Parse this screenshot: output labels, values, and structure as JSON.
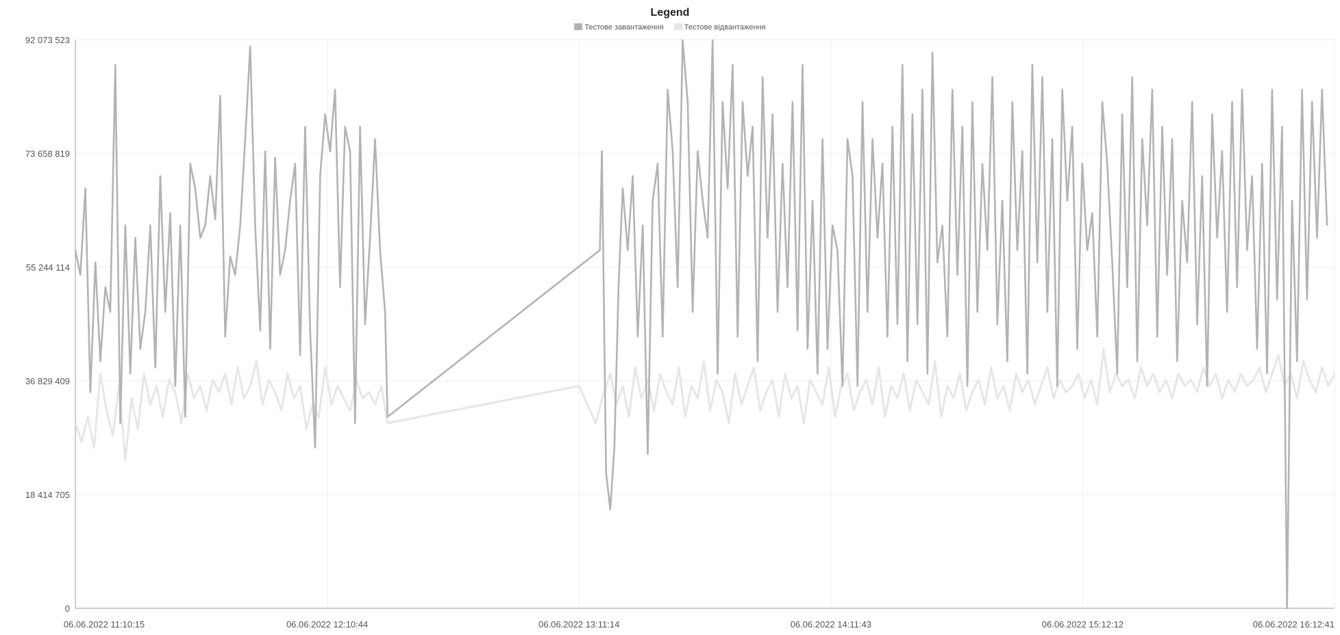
{
  "legend": {
    "title": "Legend",
    "items": [
      {
        "label": "Тестове завантаження",
        "color": "#b3b3b3"
      },
      {
        "label": "Тестове відвантаження",
        "color": "#e6e6e6"
      }
    ]
  },
  "chart_data": {
    "type": "line",
    "title": "Legend",
    "legend_position": "top-center",
    "grid": true,
    "ylim": [
      0,
      92073523
    ],
    "y_ticks": [
      "0",
      "18 414 705",
      "36 829 409",
      "55 244 114",
      "73 658 819",
      "92 073 523"
    ],
    "y_tick_values": [
      0,
      18414705,
      36829409,
      55244114,
      73658819,
      92073523
    ],
    "xlim": [
      "06.06.2022 11:10:15",
      "06.06.2022 16:12:41"
    ],
    "x_ticks": [
      "06.06.2022 11:10:15",
      "06.06.2022 12:10:44",
      "06.06.2022 13:11:14",
      "06.06.2022 14:11:43",
      "06.06.2022 15:12:12",
      "06.06.2022 16:12:41"
    ],
    "x_tick_values_min": [
      0,
      60.5,
      121,
      181.5,
      242,
      302.5
    ],
    "series": [
      {
        "name": "Тестове завантаження",
        "color": "#b3b3b3",
        "x_min": [
          0,
          1.2,
          2.4,
          3.6,
          4.8,
          6,
          7.2,
          8.4,
          9.6,
          10.8,
          12,
          13.2,
          14.4,
          15.6,
          16.8,
          18,
          19.2,
          20.4,
          21.6,
          22.8,
          24,
          25.2,
          26.4,
          27.6,
          28.8,
          30,
          31.2,
          32.4,
          33.6,
          34.8,
          36,
          37.2,
          38.4,
          39.6,
          40.8,
          42,
          43.2,
          44.4,
          45.6,
          46.8,
          48,
          49.2,
          50.4,
          51.6,
          52.8,
          54,
          55.2,
          56.4,
          57.6,
          58.8,
          60,
          61.2,
          62.4,
          63.6,
          64.8,
          66,
          67.2,
          68.4,
          69.6,
          70.8,
          72,
          73.2,
          74.4,
          75,
          126,
          126.5,
          127.5,
          128.5,
          129.5,
          130.5,
          131.5,
          132.7,
          133.9,
          135.1,
          136.3,
          137.5,
          138.7,
          139.9,
          141.1,
          142.3,
          143.5,
          144.7,
          145.9,
          147.1,
          148.3,
          149.5,
          150.7,
          151.9,
          153.1,
          154.3,
          155.5,
          156.7,
          157.9,
          159.1,
          160.3,
          161.5,
          162.7,
          163.9,
          165.1,
          166.3,
          167.5,
          168.7,
          169.9,
          171.1,
          172.3,
          173.5,
          174.7,
          175.9,
          177.1,
          178.3,
          179.5,
          180.7,
          181.9,
          183.1,
          184.3,
          185.5,
          186.7,
          187.9,
          189.1,
          190.3,
          191.5,
          192.7,
          193.9,
          195.1,
          196.3,
          197.5,
          198.7,
          199.9,
          201.1,
          202.3,
          203.5,
          204.7,
          205.9,
          207.1,
          208.3,
          209.5,
          210.7,
          211.9,
          213.1,
          214.3,
          215.5,
          216.7,
          217.9,
          219.1,
          220.3,
          221.5,
          222.7,
          223.9,
          225.1,
          226.3,
          227.5,
          228.7,
          229.9,
          231.1,
          232.3,
          233.5,
          234.7,
          235.9,
          237.1,
          238.3,
          239.5,
          240.7,
          241.9,
          243.1,
          244.3,
          245.5,
          246.7,
          247.9,
          249.1,
          250.3,
          251.5,
          252.7,
          253.9,
          255.1,
          256.3,
          257.5,
          258.7,
          259.9,
          261.1,
          262.3,
          263.5,
          264.7,
          265.9,
          267.1,
          268.3,
          269.5,
          270.7,
          271.9,
          273.1,
          274.3,
          275.5,
          276.7,
          277.9,
          279.1,
          280.3,
          281.5,
          282.7,
          283.9,
          285.1,
          286.3,
          287.5,
          288.7,
          289.9,
          291.1,
          292.3,
          293.5,
          294.7,
          295.9,
          297.1,
          298.3,
          299.5,
          300.7,
          301.9,
          302.5
        ],
        "values": [
          58000000,
          54000000,
          68000000,
          35000000,
          56000000,
          40000000,
          52000000,
          48000000,
          88000000,
          30000000,
          62000000,
          38000000,
          60000000,
          42000000,
          48000000,
          62000000,
          39000000,
          70000000,
          48000000,
          64000000,
          36000000,
          62000000,
          31000000,
          72000000,
          68000000,
          60000000,
          62000000,
          70000000,
          63000000,
          83000000,
          44000000,
          57000000,
          54000000,
          62000000,
          76000000,
          91000000,
          62000000,
          45000000,
          74000000,
          42000000,
          73000000,
          54000000,
          58000000,
          66000000,
          72000000,
          41000000,
          78000000,
          45000000,
          26000000,
          70000000,
          80000000,
          74000000,
          84000000,
          52000000,
          78000000,
          74000000,
          30000000,
          78000000,
          46000000,
          60000000,
          76000000,
          58000000,
          48000000,
          31000000,
          58000000,
          74000000,
          22000000,
          16000000,
          26000000,
          52000000,
          68000000,
          58000000,
          70000000,
          44000000,
          62000000,
          25000000,
          66000000,
          72000000,
          44000000,
          84000000,
          74000000,
          52000000,
          92000000,
          82000000,
          48000000,
          74000000,
          66000000,
          60000000,
          92000000,
          38000000,
          82000000,
          68000000,
          88000000,
          44000000,
          82000000,
          70000000,
          78000000,
          40000000,
          86000000,
          60000000,
          80000000,
          48000000,
          72000000,
          52000000,
          82000000,
          45000000,
          88000000,
          42000000,
          66000000,
          38000000,
          76000000,
          42000000,
          62000000,
          58000000,
          36000000,
          76000000,
          70000000,
          36000000,
          82000000,
          48000000,
          76000000,
          60000000,
          72000000,
          44000000,
          78000000,
          46000000,
          88000000,
          40000000,
          80000000,
          46000000,
          84000000,
          38000000,
          90000000,
          56000000,
          62000000,
          44000000,
          84000000,
          54000000,
          78000000,
          36000000,
          82000000,
          48000000,
          72000000,
          58000000,
          86000000,
          46000000,
          66000000,
          40000000,
          82000000,
          58000000,
          74000000,
          38000000,
          88000000,
          56000000,
          86000000,
          48000000,
          76000000,
          36000000,
          84000000,
          66000000,
          78000000,
          42000000,
          72000000,
          58000000,
          64000000,
          44000000,
          82000000,
          72000000,
          56000000,
          38000000,
          80000000,
          52000000,
          86000000,
          40000000,
          76000000,
          62000000,
          84000000,
          44000000,
          78000000,
          54000000,
          76000000,
          40000000,
          66000000,
          56000000,
          82000000,
          46000000,
          70000000,
          36000000,
          80000000,
          60000000,
          74000000,
          48000000,
          82000000,
          52000000,
          84000000,
          58000000,
          70000000,
          42000000,
          72000000,
          38000000,
          84000000,
          50000000,
          78000000,
          0,
          66000000,
          40000000,
          84000000,
          50000000,
          82000000,
          60000000,
          84000000,
          62000000
        ]
      },
      {
        "name": "Тестове відвантаження",
        "color": "#e6e6e6",
        "x_min": [
          0,
          1.5,
          3,
          4.5,
          6,
          7.5,
          9,
          10.5,
          12,
          13.5,
          15,
          16.5,
          18,
          19.5,
          21,
          22.5,
          24,
          25.5,
          27,
          28.5,
          30,
          31.5,
          33,
          34.5,
          36,
          37.5,
          39,
          40.5,
          42,
          43.5,
          45,
          46.5,
          48,
          49.5,
          51,
          52.5,
          54,
          55.5,
          57,
          58.5,
          60,
          61.5,
          63,
          64.5,
          66,
          67.5,
          69,
          70.5,
          72,
          73.5,
          75,
          121,
          123,
          125,
          127,
          128.5,
          130,
          131.5,
          133,
          134.5,
          136,
          137.5,
          139,
          140.5,
          142,
          143.5,
          145,
          146.5,
          148,
          149.5,
          151,
          152.5,
          154,
          155.5,
          157,
          158.5,
          160,
          161.5,
          163,
          164.5,
          166,
          167.5,
          169,
          170.5,
          172,
          173.5,
          175,
          176.5,
          178,
          179.5,
          181,
          182.5,
          184,
          185.5,
          187,
          188.5,
          190,
          191.5,
          193,
          194.5,
          196,
          197.5,
          199,
          200.5,
          202,
          203.5,
          205,
          206.5,
          208,
          209.5,
          211,
          212.5,
          214,
          215.5,
          217,
          218.5,
          220,
          221.5,
          223,
          224.5,
          226,
          227.5,
          229,
          230.5,
          232,
          233.5,
          235,
          236.5,
          238,
          239.5,
          241,
          242.5,
          244,
          245.5,
          247,
          248.5,
          250,
          251.5,
          253,
          254.5,
          256,
          257.5,
          259,
          260.5,
          262,
          263.5,
          265,
          266.5,
          268,
          269.5,
          271,
          272.5,
          274,
          275.5,
          277,
          278.5,
          280,
          281.5,
          283,
          284.5,
          286,
          287.5,
          289,
          290.5,
          292,
          293.5,
          295,
          296.5,
          298,
          299.5,
          301,
          302.5
        ],
        "values": [
          30000000,
          27000000,
          31000000,
          26000000,
          38000000,
          32000000,
          28000000,
          36000000,
          24000000,
          34000000,
          29000000,
          38000000,
          33000000,
          36000000,
          31000000,
          37000000,
          35000000,
          30000000,
          38000000,
          34000000,
          36000000,
          32000000,
          37000000,
          35000000,
          38000000,
          33000000,
          39000000,
          34000000,
          36000000,
          40000000,
          33000000,
          37000000,
          35000000,
          32000000,
          38000000,
          34000000,
          36000000,
          29000000,
          33000000,
          31000000,
          39000000,
          33000000,
          36000000,
          34000000,
          32000000,
          37000000,
          34000000,
          35000000,
          33000000,
          36000000,
          30000000,
          36000000,
          33000000,
          30000000,
          35000000,
          38000000,
          33000000,
          36000000,
          31000000,
          39000000,
          34000000,
          37000000,
          32000000,
          38000000,
          35000000,
          33000000,
          39000000,
          31000000,
          36000000,
          34000000,
          40000000,
          32000000,
          37000000,
          35000000,
          30000000,
          38000000,
          33000000,
          36000000,
          39000000,
          32000000,
          35000000,
          37000000,
          31000000,
          38000000,
          34000000,
          36000000,
          30000000,
          37000000,
          35000000,
          33000000,
          39000000,
          31000000,
          36000000,
          38000000,
          32000000,
          35000000,
          37000000,
          33000000,
          39000000,
          31000000,
          36000000,
          34000000,
          38000000,
          32000000,
          37000000,
          35000000,
          33000000,
          40000000,
          31000000,
          36000000,
          34000000,
          38000000,
          32000000,
          35000000,
          37000000,
          33000000,
          39000000,
          34000000,
          36000000,
          32000000,
          38000000,
          35000000,
          37000000,
          33000000,
          36000000,
          39000000,
          34000000,
          37000000,
          35000000,
          36000000,
          38000000,
          34000000,
          37000000,
          33000000,
          42000000,
          35000000,
          38000000,
          36000000,
          37000000,
          34000000,
          39000000,
          36000000,
          38000000,
          35000000,
          37000000,
          34000000,
          38000000,
          36000000,
          37000000,
          35000000,
          39000000,
          36000000,
          38000000,
          34000000,
          37000000,
          35000000,
          38000000,
          36000000,
          37000000,
          39000000,
          35000000,
          38000000,
          41000000,
          36000000,
          38000000,
          34000000,
          40000000,
          37000000,
          35000000,
          39000000,
          36000000,
          38000000,
          32000000,
          29000000
        ]
      }
    ]
  }
}
